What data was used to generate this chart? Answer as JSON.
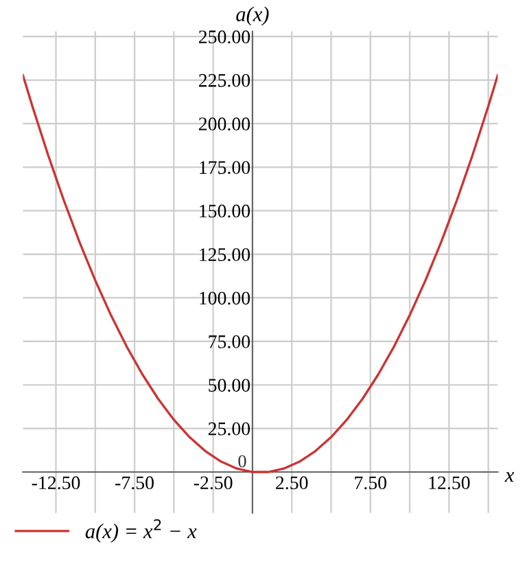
{
  "chart_data": {
    "type": "line",
    "xlabel": "x",
    "ylabel": "a(x)",
    "xlim": [
      -14.6,
      15.6
    ],
    "ylim": [
      -23.5,
      253
    ],
    "xticks": [
      {
        "value": -12.5,
        "label": "-12.50"
      },
      {
        "value": -10,
        "label": null
      },
      {
        "value": -7.5,
        "label": "-7.50"
      },
      {
        "value": -5,
        "label": null
      },
      {
        "value": -2.5,
        "label": "-2.50"
      },
      {
        "value": 2.5,
        "label": "2.50"
      },
      {
        "value": 5,
        "label": null
      },
      {
        "value": 7.5,
        "label": "7.50"
      },
      {
        "value": 10,
        "label": null
      },
      {
        "value": 12.5,
        "label": "12.50"
      },
      {
        "value": 15,
        "label": null
      }
    ],
    "yticks": [
      {
        "value": 0,
        "label": "0"
      },
      {
        "value": 25,
        "label": "25.00"
      },
      {
        "value": 50,
        "label": "50.00"
      },
      {
        "value": 75,
        "label": "75.00"
      },
      {
        "value": 100,
        "label": "100.00"
      },
      {
        "value": 125,
        "label": "125.00"
      },
      {
        "value": 150,
        "label": "150.00"
      },
      {
        "value": 175,
        "label": "175.00"
      },
      {
        "value": 200,
        "label": "200.00"
      },
      {
        "value": 225,
        "label": "225.00"
      },
      {
        "value": 250,
        "label": "250.00"
      }
    ],
    "grid": true,
    "legend": "bottom left",
    "series": [
      {
        "name": "a(x) = x$^{2}$ − x",
        "color": "#cc3333",
        "x": [
          -14.6,
          -14,
          -13,
          -12,
          -11,
          -10,
          -9,
          -8,
          -7,
          -6,
          -5,
          -4,
          -3,
          -2,
          -1,
          0,
          1,
          2,
          3,
          4,
          5,
          6,
          7,
          8,
          9,
          10,
          11,
          12,
          13,
          14,
          15,
          15.6
        ],
        "values": [
          227.8,
          210,
          182,
          156,
          132,
          110,
          90,
          72,
          56,
          42,
          30,
          20,
          12,
          6,
          2,
          0,
          0,
          2,
          6,
          12,
          20,
          30,
          42,
          56,
          72,
          90,
          110,
          132,
          156,
          182,
          210,
          227.8
        ]
      }
    ]
  }
}
